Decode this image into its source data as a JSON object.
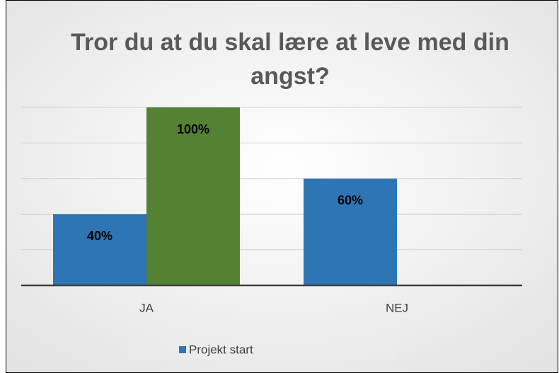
{
  "chart_data": {
    "type": "bar",
    "title": "Tror du at du skal lære at leve med din angst?",
    "categories": [
      "JA",
      "NEJ"
    ],
    "series": [
      {
        "name": "Projekt start",
        "color": "#2e75b6",
        "values": [
          40,
          60
        ],
        "value_labels": [
          "40%",
          "60%"
        ]
      },
      {
        "color": "#548235",
        "values": [
          100,
          null
        ],
        "value_labels": [
          "100%",
          null
        ]
      }
    ],
    "ylim": [
      0,
      100
    ],
    "yticks": [
      0,
      20,
      40,
      60,
      80,
      100
    ],
    "grid": true,
    "legend": "bottom"
  }
}
